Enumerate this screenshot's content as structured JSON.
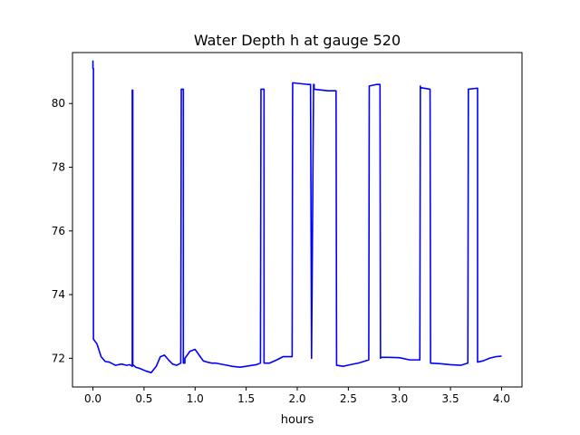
{
  "chart_data": {
    "type": "line",
    "title": "Water Depth h at gauge 520",
    "xlabel": "hours",
    "ylabel": "",
    "xlim": [
      -0.2,
      4.2
    ],
    "ylim": [
      71.1,
      81.6
    ],
    "xticks": [
      0.0,
      0.5,
      1.0,
      1.5,
      2.0,
      2.5,
      3.0,
      3.5,
      4.0
    ],
    "xtick_labels": [
      "0.0",
      "0.5",
      "1.0",
      "1.5",
      "2.0",
      "2.5",
      "3.0",
      "3.5",
      "4.0"
    ],
    "yticks": [
      72,
      74,
      76,
      78,
      80
    ],
    "ytick_labels": [
      "72",
      "74",
      "76",
      "78",
      "80"
    ],
    "grid": false,
    "series": [
      {
        "color": "#0000ff",
        "x": [
          0.0,
          0.0,
          0.005,
          0.005,
          0.04,
          0.08,
          0.12,
          0.16,
          0.22,
          0.28,
          0.33,
          0.36,
          0.385,
          0.385,
          0.39,
          0.39,
          0.42,
          0.46,
          0.52,
          0.57,
          0.62,
          0.66,
          0.7,
          0.74,
          0.78,
          0.82,
          0.86,
          0.865,
          0.865,
          0.88,
          0.885,
          0.885,
          0.9,
          0.9,
          0.95,
          1.0,
          1.04,
          1.08,
          1.12,
          1.16,
          1.2,
          1.28,
          1.36,
          1.44,
          1.5,
          1.56,
          1.6,
          1.64,
          1.645,
          1.645,
          1.67,
          1.675,
          1.675,
          1.73,
          1.8,
          1.86,
          1.9,
          1.95,
          1.955,
          1.955,
          2.1,
          2.13,
          2.14,
          2.14,
          2.16,
          2.165,
          2.165,
          2.3,
          2.38,
          2.385,
          2.385,
          2.45,
          2.52,
          2.6,
          2.7,
          2.705,
          2.705,
          2.78,
          2.81,
          2.815,
          2.815,
          2.9,
          3.0,
          3.1,
          3.2,
          3.205,
          3.205,
          3.3,
          3.305,
          3.305,
          3.4,
          3.5,
          3.6,
          3.67,
          3.675,
          3.675,
          3.76,
          3.765,
          3.765,
          3.82,
          3.88,
          3.94,
          4.0
        ],
        "y": [
          81.35,
          81.1,
          81.1,
          72.6,
          72.45,
          72.05,
          71.9,
          71.88,
          71.78,
          71.82,
          71.78,
          71.8,
          71.75,
          80.42,
          80.42,
          71.8,
          71.72,
          71.68,
          71.6,
          71.55,
          71.75,
          72.05,
          72.1,
          71.95,
          71.82,
          71.78,
          71.85,
          80.42,
          80.45,
          80.45,
          80.45,
          71.85,
          71.85,
          72.0,
          72.22,
          72.28,
          72.1,
          71.92,
          71.88,
          71.85,
          71.85,
          71.8,
          71.75,
          71.72,
          71.75,
          71.78,
          71.8,
          71.85,
          80.42,
          80.45,
          80.45,
          80.45,
          71.85,
          71.85,
          71.95,
          72.05,
          72.05,
          72.05,
          80.65,
          80.65,
          80.6,
          80.6,
          72.0,
          72.0,
          80.6,
          80.6,
          80.45,
          80.4,
          80.4,
          71.78,
          71.78,
          71.75,
          71.8,
          71.85,
          71.95,
          80.5,
          80.55,
          80.6,
          80.6,
          72.0,
          72.03,
          72.03,
          72.02,
          71.95,
          71.95,
          80.55,
          80.5,
          80.45,
          71.85,
          71.85,
          71.83,
          71.8,
          71.78,
          71.85,
          80.42,
          80.45,
          80.48,
          80.48,
          71.88,
          71.92,
          72.0,
          72.05,
          72.07
        ]
      }
    ]
  }
}
